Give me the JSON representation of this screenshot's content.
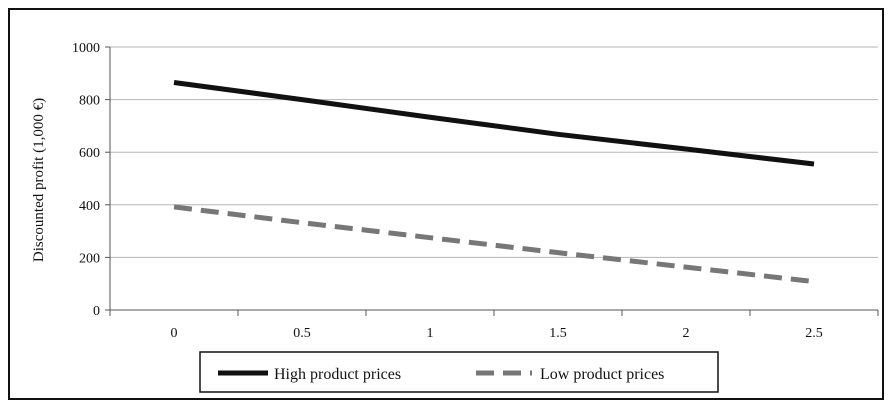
{
  "chart_data": {
    "type": "line",
    "title": "",
    "xlabel": "",
    "ylabel": "Discounted profit (1,000 €)",
    "x": [
      0,
      0.5,
      1,
      1.5,
      2,
      2.5
    ],
    "x_tick_labels": [
      "0",
      "0.5",
      "1",
      "1.5",
      "2",
      "2.5"
    ],
    "y_tick_labels": [
      "0",
      "200",
      "400",
      "600",
      "800",
      "1000"
    ],
    "ylim": [
      0,
      1000
    ],
    "grid": "horizontal",
    "legend_position": "bottom",
    "series": [
      {
        "name": "High product prices",
        "values": [
          865,
          800,
          733,
          668,
          612,
          555
        ],
        "color": "#111111",
        "style": "solid"
      },
      {
        "name": "Low product prices",
        "values": [
          392,
          332,
          275,
          218,
          163,
          108
        ],
        "color": "#777777",
        "style": "dashed"
      }
    ]
  }
}
